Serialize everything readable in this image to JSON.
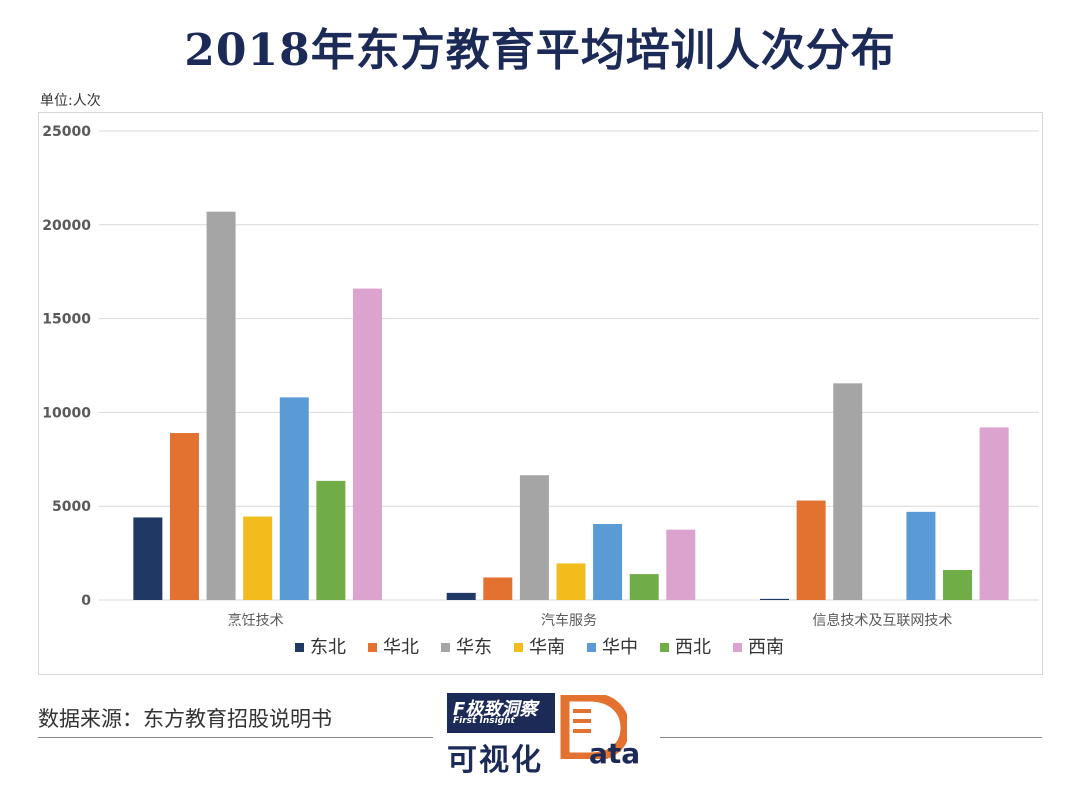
{
  "title": "2018年东方教育平均培训人次分布",
  "unit_label": "单位:人次",
  "source_text": "数据来源：东方教育招股说明书",
  "logo": {
    "brand_cn": "F极致洞察",
    "brand_en": "First Insight",
    "caption": "可视化",
    "data_suffix": "ata"
  },
  "colors": {
    "title": "#1c2a57",
    "gridline": "#d9d9d9",
    "axis_text": "#595959"
  },
  "chart_data": {
    "type": "bar",
    "categories": [
      "烹饪技术",
      "汽车服务",
      "信息技术及互联网技术"
    ],
    "ylim": [
      0,
      25000
    ],
    "yticks": [
      0,
      5000,
      10000,
      15000,
      20000,
      25000
    ],
    "grid": true,
    "legend_position": "bottom",
    "series": [
      {
        "name": "东北",
        "color": "#1f3864",
        "values": [
          4400,
          380,
          60
        ]
      },
      {
        "name": "华北",
        "color": "#e3712f",
        "values": [
          8900,
          1200,
          5300
        ]
      },
      {
        "name": "华东",
        "color": "#a5a5a5",
        "values": [
          20700,
          6650,
          11550
        ]
      },
      {
        "name": "华南",
        "color": "#f2bd1c",
        "values": [
          4450,
          1950,
          0
        ]
      },
      {
        "name": "华中",
        "color": "#5b9bd5",
        "values": [
          10800,
          4050,
          4700
        ]
      },
      {
        "name": "西北",
        "color": "#70ad47",
        "values": [
          6350,
          1380,
          1600
        ]
      },
      {
        "name": "西南",
        "color": "#dba3cd",
        "values": [
          16600,
          3750,
          9200
        ]
      }
    ]
  }
}
